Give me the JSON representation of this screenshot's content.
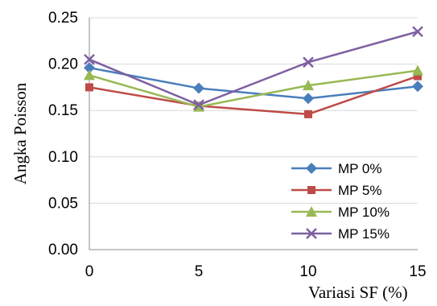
{
  "chart_data": {
    "type": "line",
    "x": [
      0,
      5,
      10,
      15
    ],
    "xlabel": "Variasi SF (%)",
    "ylabel": "Angka Poisson",
    "xlim": [
      0,
      15
    ],
    "ylim": [
      0,
      0.25
    ],
    "yticks": [
      "0.00",
      "0.05",
      "0.10",
      "0.15",
      "0.20",
      "0.25"
    ],
    "xticks": [
      "0",
      "5",
      "10",
      "15"
    ],
    "grid": "horizontal",
    "legend": "bottom-right",
    "series": [
      {
        "name": "MP 0%",
        "values": [
          0.196,
          0.174,
          0.163,
          0.176
        ],
        "color": "#4a7ebb",
        "marker": "diamond"
      },
      {
        "name": "MP 5%",
        "values": [
          0.175,
          0.155,
          0.146,
          0.187
        ],
        "color": "#be4b48",
        "marker": "square"
      },
      {
        "name": "MP 10%",
        "values": [
          0.188,
          0.154,
          0.177,
          0.193
        ],
        "color": "#98b954",
        "marker": "triangle"
      },
      {
        "name": "MP 15%",
        "values": [
          0.205,
          0.156,
          0.202,
          0.235
        ],
        "color": "#7d60a0",
        "marker": "x"
      }
    ]
  }
}
